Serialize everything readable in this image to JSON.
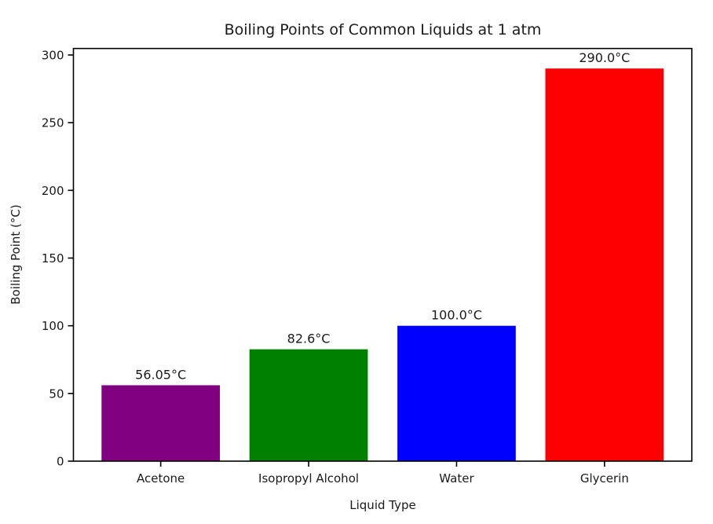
{
  "title": "Boiling Points of Common Liquids at 1 atm",
  "chart_data": {
    "type": "bar",
    "title": "Boiling Points of Common Liquids at 1 atm",
    "xlabel": "Liquid Type",
    "ylabel": "Boiling Point (°C)",
    "categories": [
      "Acetone",
      "Isopropyl Alcohol",
      "Water",
      "Glycerin"
    ],
    "values": [
      56.05,
      82.6,
      100.0,
      290.0
    ],
    "value_labels": [
      "56.05°C",
      "82.6°C",
      "100.0°C",
      "290.0°C"
    ],
    "bar_colors": [
      "#800080",
      "#008000",
      "#0000ff",
      "#ff0000"
    ],
    "yticks": [
      0,
      50,
      100,
      150,
      200,
      250,
      300
    ],
    "ylim": [
      0,
      304.8
    ],
    "grid": false,
    "legend_position": "none",
    "background_color": "#ffffff",
    "spine_color": "#000000",
    "text_color": "#1a1a1a"
  }
}
